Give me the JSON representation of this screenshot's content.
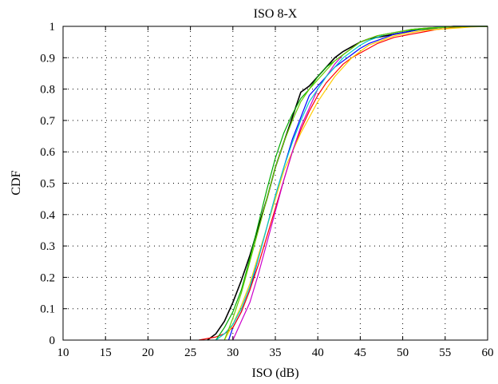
{
  "chart_data": {
    "type": "line",
    "title": "ISO 8-X",
    "xlabel": "ISO (dB)",
    "ylabel": "CDF",
    "xlim": [
      10,
      60
    ],
    "ylim": [
      0,
      1
    ],
    "xticks": [
      10,
      15,
      20,
      25,
      30,
      35,
      40,
      45,
      50,
      55,
      60
    ],
    "yticks": [
      0,
      0.1,
      0.2,
      0.3,
      0.4,
      0.5,
      0.6,
      0.7,
      0.8,
      0.9,
      1
    ],
    "xtick_labels": [
      "10",
      "15",
      "20",
      "25",
      "30",
      "35",
      "40",
      "45",
      "50",
      "55",
      "60"
    ],
    "ytick_labels": [
      "0",
      "0.1",
      "0.2",
      "0.3",
      "0.4",
      "0.5",
      "0.6",
      "0.7",
      "0.8",
      "0.9",
      "1"
    ],
    "grid": true,
    "grid_style": "dotted",
    "series": [
      {
        "color": "#000000",
        "x": [
          27,
          28,
          29,
          30,
          31,
          32,
          33,
          34,
          35,
          36,
          37,
          38,
          39,
          40,
          41,
          42,
          43,
          44,
          45,
          46,
          47,
          48,
          49,
          50,
          51,
          52,
          53,
          54,
          55,
          56,
          57,
          58,
          59,
          60
        ],
        "y": [
          0,
          0.02,
          0.06,
          0.12,
          0.19,
          0.27,
          0.36,
          0.45,
          0.55,
          0.63,
          0.71,
          0.79,
          0.81,
          0.84,
          0.87,
          0.9,
          0.92,
          0.935,
          0.95,
          0.96,
          0.965,
          0.97,
          0.975,
          0.98,
          0.985,
          0.99,
          0.992,
          0.995,
          0.998,
          1,
          1,
          1,
          1,
          1
        ]
      },
      {
        "color": "#0000ff",
        "x": [
          29.5,
          30,
          31,
          32,
          33,
          34,
          35,
          36,
          37,
          38,
          39,
          40,
          41,
          42,
          43,
          44,
          45,
          46,
          47,
          48,
          49,
          50,
          51,
          52,
          53,
          54,
          55,
          56,
          57,
          58,
          59,
          60
        ],
        "y": [
          0,
          0.04,
          0.09,
          0.16,
          0.26,
          0.36,
          0.46,
          0.55,
          0.64,
          0.71,
          0.78,
          0.81,
          0.84,
          0.87,
          0.89,
          0.91,
          0.93,
          0.945,
          0.955,
          0.965,
          0.975,
          0.98,
          0.985,
          0.99,
          0.993,
          0.996,
          0.998,
          1,
          1,
          1,
          1,
          1
        ]
      },
      {
        "color": "#ff0000",
        "x": [
          26,
          27,
          28,
          29,
          30,
          31,
          32,
          33,
          34,
          35,
          36,
          37,
          38,
          39,
          40,
          41,
          42,
          43,
          44,
          45,
          46,
          47,
          48,
          49,
          50,
          51,
          52,
          53,
          54,
          55,
          56,
          57,
          58,
          59,
          60
        ],
        "y": [
          0,
          0.005,
          0.01,
          0.02,
          0.04,
          0.09,
          0.16,
          0.24,
          0.33,
          0.42,
          0.51,
          0.6,
          0.67,
          0.73,
          0.78,
          0.82,
          0.85,
          0.88,
          0.9,
          0.915,
          0.93,
          0.945,
          0.955,
          0.965,
          0.97,
          0.975,
          0.98,
          0.985,
          0.99,
          0.993,
          0.996,
          0.998,
          1,
          1,
          1
        ]
      },
      {
        "color": "#ffcc00",
        "x": [
          29,
          30,
          31,
          32,
          33,
          34,
          35,
          36,
          37,
          38,
          39,
          40,
          41,
          42,
          43,
          44,
          45,
          46,
          47,
          48,
          49,
          50,
          51,
          52,
          53,
          54,
          55,
          56,
          57,
          58,
          59,
          60
        ],
        "y": [
          0,
          0.05,
          0.11,
          0.18,
          0.27,
          0.36,
          0.45,
          0.54,
          0.6,
          0.66,
          0.71,
          0.76,
          0.8,
          0.84,
          0.87,
          0.9,
          0.92,
          0.94,
          0.95,
          0.96,
          0.97,
          0.975,
          0.98,
          0.985,
          0.988,
          0.99,
          0.992,
          0.994,
          0.996,
          0.998,
          0.999,
          0.999
        ]
      },
      {
        "color": "#cc00cc",
        "x": [
          30,
          31,
          32,
          33,
          34,
          35,
          36,
          37,
          38,
          39,
          40,
          41,
          42,
          43,
          44,
          45,
          46,
          47,
          48,
          49,
          50,
          51,
          52,
          53,
          54,
          55,
          56,
          57,
          58,
          59,
          60
        ],
        "y": [
          0,
          0.06,
          0.12,
          0.21,
          0.31,
          0.41,
          0.51,
          0.6,
          0.68,
          0.74,
          0.8,
          0.84,
          0.88,
          0.91,
          0.93,
          0.95,
          0.96,
          0.97,
          0.975,
          0.98,
          0.985,
          0.99,
          0.993,
          0.995,
          0.997,
          0.998,
          0.999,
          1,
          1,
          1,
          1
        ]
      },
      {
        "color": "#00aa00",
        "x": [
          28,
          29,
          30,
          31,
          32,
          33,
          34,
          35,
          36,
          37,
          38,
          39,
          40,
          41,
          42,
          43,
          44,
          45,
          46,
          47,
          48,
          49,
          50,
          51,
          52,
          53,
          54,
          55,
          56,
          57,
          58,
          59,
          60
        ],
        "y": [
          0,
          0.04,
          0.09,
          0.16,
          0.26,
          0.37,
          0.48,
          0.58,
          0.66,
          0.72,
          0.77,
          0.8,
          0.84,
          0.87,
          0.89,
          0.91,
          0.93,
          0.95,
          0.96,
          0.97,
          0.975,
          0.98,
          0.985,
          0.988,
          0.99,
          0.993,
          0.995,
          0.997,
          0.998,
          0.999,
          1,
          1,
          1
        ]
      },
      {
        "color": "#00cccc",
        "x": [
          28,
          29,
          30,
          31,
          32,
          33,
          34,
          35,
          36,
          37,
          38,
          39,
          40,
          41,
          42,
          43,
          44,
          45,
          46,
          47,
          48,
          49,
          50,
          51,
          52,
          53,
          54,
          55,
          56,
          57,
          58,
          59,
          60
        ],
        "y": [
          0,
          0.02,
          0.05,
          0.1,
          0.17,
          0.26,
          0.36,
          0.46,
          0.55,
          0.63,
          0.7,
          0.76,
          0.8,
          0.84,
          0.87,
          0.9,
          0.92,
          0.94,
          0.955,
          0.965,
          0.975,
          0.98,
          0.985,
          0.99,
          0.993,
          0.995,
          0.997,
          0.998,
          0.999,
          1,
          1,
          1,
          1
        ]
      },
      {
        "color": "#66cc00",
        "x": [
          29,
          30,
          31,
          32,
          33,
          34,
          35,
          36,
          37,
          38,
          39,
          40,
          41,
          42,
          43,
          44,
          45,
          46,
          47,
          48,
          49,
          50,
          51,
          52,
          53,
          54,
          55,
          56,
          57,
          58,
          59,
          60
        ],
        "y": [
          0,
          0.07,
          0.15,
          0.25,
          0.35,
          0.45,
          0.55,
          0.63,
          0.7,
          0.76,
          0.8,
          0.83,
          0.86,
          0.89,
          0.91,
          0.93,
          0.95,
          0.96,
          0.97,
          0.975,
          0.98,
          0.985,
          0.99,
          0.993,
          0.995,
          0.996,
          0.997,
          0.998,
          0.999,
          1,
          1,
          1
        ]
      }
    ]
  }
}
